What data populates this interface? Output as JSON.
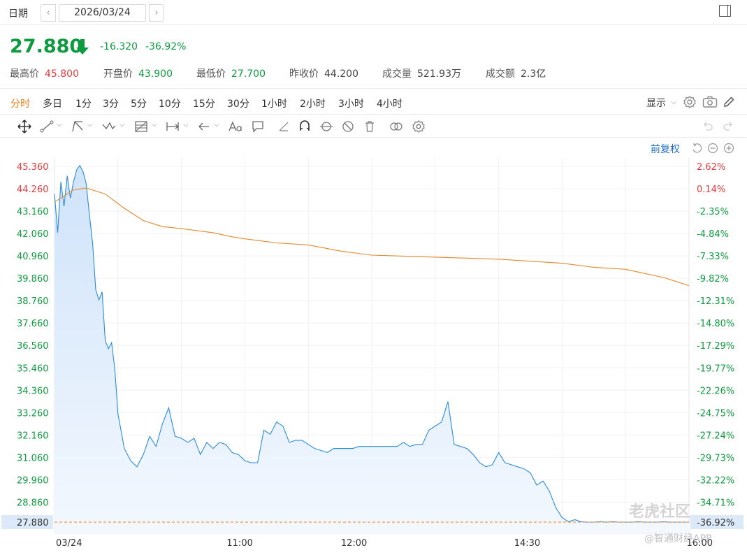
{
  "datebar": {
    "label": "日期",
    "date": "2026/03/24",
    "prev": "‹",
    "next": "›"
  },
  "quote": {
    "price": "27.880",
    "change": "-16.320",
    "change_pct": "-36.92%",
    "stats": [
      {
        "label": "最高价",
        "value": "45.800",
        "tone": "red"
      },
      {
        "label": "开盘价",
        "value": "43.900",
        "tone": "green"
      },
      {
        "label": "最低价",
        "value": "27.700",
        "tone": "green"
      },
      {
        "label": "昨收价",
        "value": "44.200",
        "tone": "plain"
      },
      {
        "label": "成交量",
        "value": "521.93万",
        "tone": "plain"
      },
      {
        "label": "成交额",
        "value": "2.3亿",
        "tone": "plain"
      }
    ]
  },
  "periods": {
    "tabs": [
      "分时",
      "多日",
      "1分",
      "3分",
      "5分",
      "10分",
      "15分",
      "30分",
      "1小时",
      "2小时",
      "3小时",
      "4小时"
    ],
    "active_index": 0,
    "display_label": "显示"
  },
  "chart_header": {
    "adjust_label": "前复权"
  },
  "watermark": {
    "line1": "老虎社区",
    "line2": "@智通财经APP"
  },
  "colors": {
    "price_line": "#2b8bd8",
    "avg_line": "#e08a2c",
    "fill_top": "#cfe3fa",
    "fill_bottom": "#f3f8fe",
    "last_line": "#f08018",
    "up": "#e43c3c",
    "down": "#0e9b3f"
  },
  "chart_data": {
    "type": "line",
    "title": "",
    "xlabel": "",
    "ylabel": "",
    "x_ticks": [
      "03/24",
      "11:00",
      "12:00",
      "14:30",
      "16:00"
    ],
    "x_tick_pos": [
      0,
      0.292,
      0.472,
      0.745,
      1.0
    ],
    "y_ticks_left": [
      "45.360",
      "44.260",
      "43.160",
      "42.060",
      "40.960",
      "39.860",
      "38.760",
      "37.660",
      "36.560",
      "35.460",
      "34.360",
      "33.260",
      "32.160",
      "31.060",
      "29.960",
      "28.860",
      "27.880"
    ],
    "y_ticks_right": [
      "2.62%",
      "0.14%",
      "-2.35%",
      "-4.84%",
      "-7.33%",
      "-9.82%",
      "-12.31%",
      "-14.80%",
      "-17.29%",
      "-19.77%",
      "-22.26%",
      "-24.75%",
      "-27.24%",
      "-29.73%",
      "-32.22%",
      "-34.71%",
      "-36.92%"
    ],
    "ylim": [
      27.88,
      45.36
    ],
    "previous_close": 44.2,
    "last_price": 27.88,
    "grid": true,
    "series": [
      {
        "name": "",
        "x": [
          0.0,
          0.005,
          0.01,
          0.015,
          0.02,
          0.025,
          0.03,
          0.035,
          0.04,
          0.045,
          0.05,
          0.055,
          0.06,
          0.065,
          0.07,
          0.075,
          0.08,
          0.085,
          0.09,
          0.095,
          0.1,
          0.11,
          0.12,
          0.13,
          0.14,
          0.15,
          0.16,
          0.17,
          0.18,
          0.19,
          0.2,
          0.21,
          0.22,
          0.23,
          0.24,
          0.25,
          0.26,
          0.27,
          0.28,
          0.29,
          0.3,
          0.31,
          0.32,
          0.33,
          0.34,
          0.35,
          0.36,
          0.37,
          0.38,
          0.39,
          0.4,
          0.41,
          0.42,
          0.43,
          0.44,
          0.45,
          0.46,
          0.47,
          0.48,
          0.49,
          0.5,
          0.51,
          0.52,
          0.53,
          0.54,
          0.55,
          0.56,
          0.57,
          0.58,
          0.59,
          0.6,
          0.61,
          0.62,
          0.63,
          0.64,
          0.65,
          0.66,
          0.67,
          0.68,
          0.69,
          0.7,
          0.71,
          0.72,
          0.73,
          0.74,
          0.75,
          0.76,
          0.77,
          0.78,
          0.79,
          0.8,
          0.81,
          0.82,
          0.83,
          0.84,
          0.85,
          0.86,
          0.87,
          0.88,
          0.89,
          0.9,
          0.91,
          0.92,
          0.93,
          0.94,
          0.95,
          0.96,
          0.97,
          0.98,
          0.99,
          1.0
        ],
        "values": [
          44.0,
          42.1,
          44.6,
          43.4,
          44.9,
          43.8,
          44.6,
          45.2,
          45.4,
          45.1,
          44.5,
          43.0,
          41.6,
          39.3,
          38.8,
          39.2,
          36.8,
          36.4,
          36.7,
          35.4,
          33.2,
          31.5,
          30.9,
          30.6,
          31.2,
          32.1,
          31.6,
          32.7,
          33.5,
          32.1,
          32.0,
          31.8,
          32.0,
          31.2,
          31.8,
          31.5,
          31.8,
          31.7,
          31.3,
          31.2,
          30.9,
          30.8,
          30.8,
          32.4,
          32.2,
          32.8,
          32.6,
          31.8,
          31.9,
          31.9,
          31.7,
          31.5,
          31.4,
          31.3,
          31.5,
          31.5,
          31.5,
          31.5,
          31.6,
          31.6,
          31.6,
          31.6,
          31.6,
          31.6,
          31.6,
          31.8,
          31.6,
          31.7,
          31.7,
          32.4,
          32.6,
          32.8,
          33.8,
          31.7,
          31.6,
          31.5,
          31.2,
          30.8,
          30.6,
          30.7,
          31.3,
          30.8,
          30.7,
          30.6,
          30.5,
          30.3,
          29.7,
          29.9,
          29.4,
          28.6,
          28.1,
          27.9,
          28.0,
          27.9,
          27.88,
          27.88,
          27.9,
          27.88,
          27.9,
          27.88,
          27.88,
          27.88,
          27.9,
          27.88,
          27.88,
          27.88,
          27.9,
          27.88,
          27.88,
          27.88,
          27.88
        ]
      },
      {
        "name": "",
        "x": [
          0.0,
          0.03,
          0.05,
          0.08,
          0.11,
          0.14,
          0.17,
          0.2,
          0.25,
          0.28,
          0.3,
          0.35,
          0.4,
          0.45,
          0.5,
          0.55,
          0.6,
          0.65,
          0.7,
          0.75,
          0.8,
          0.85,
          0.9,
          0.93,
          0.96,
          0.98,
          1.0
        ],
        "values": [
          43.6,
          44.2,
          44.3,
          44.0,
          43.3,
          42.7,
          42.4,
          42.3,
          42.1,
          41.9,
          41.8,
          41.6,
          41.5,
          41.2,
          41.0,
          40.95,
          40.9,
          40.85,
          40.8,
          40.7,
          40.6,
          40.4,
          40.3,
          40.1,
          39.9,
          39.7,
          39.5
        ]
      }
    ]
  }
}
